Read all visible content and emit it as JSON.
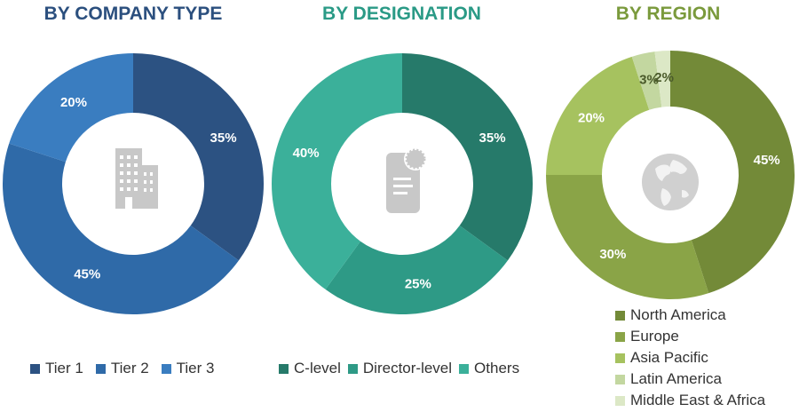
{
  "titles": {
    "company": "BY COMPANY TYPE",
    "designation": "BY DESIGNATION",
    "region": "BY REGION"
  },
  "icons": {
    "company": "building-icon",
    "designation": "certificate-document-icon",
    "region": "globe-icon"
  },
  "chart_data": [
    {
      "type": "pie",
      "title": "BY COMPANY TYPE",
      "categories": [
        "Tier 1",
        "Tier 2",
        "Tier 3"
      ],
      "values": [
        35,
        45,
        20
      ],
      "labels": [
        "35%",
        "45%",
        "20%"
      ],
      "colors": [
        "#2c5282",
        "#2f6aa8",
        "#3a7dc0"
      ],
      "legend": "bottom"
    },
    {
      "type": "pie",
      "title": "BY DESIGNATION",
      "categories": [
        "C-level",
        "Director-level",
        "Others"
      ],
      "values": [
        35,
        25,
        40
      ],
      "labels": [
        "35%",
        "25%",
        "40%"
      ],
      "colors": [
        "#267a6a",
        "#2e9a86",
        "#3bb09a"
      ],
      "legend": "bottom"
    },
    {
      "type": "pie",
      "title": "BY REGION",
      "categories": [
        "North America",
        "Europe",
        "Asia Pacific",
        "Latin America",
        "Middle East & Africa"
      ],
      "values": [
        45,
        30,
        20,
        3,
        2
      ],
      "labels": [
        "45%",
        "30%",
        "20%",
        "3%",
        "2%"
      ],
      "colors": [
        "#738a38",
        "#8aa447",
        "#a6c25f",
        "#c3d7a0",
        "#dce8c6"
      ],
      "legend": "bottom-right"
    }
  ]
}
